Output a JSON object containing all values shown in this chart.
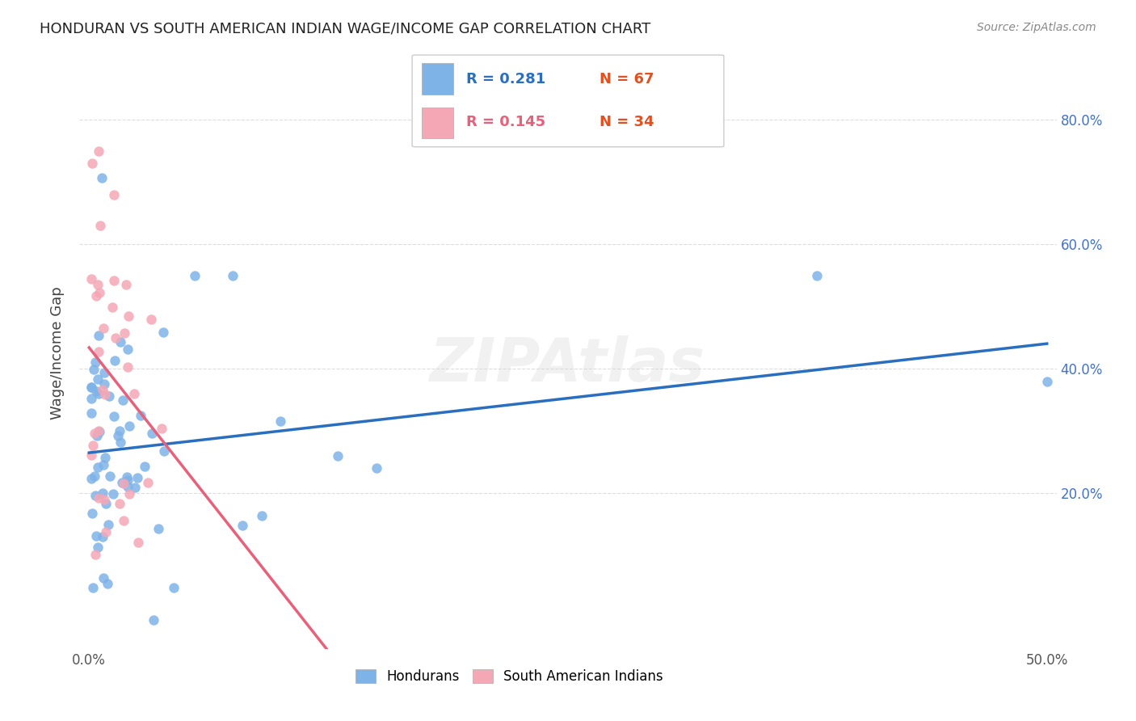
{
  "title": "HONDURAN VS SOUTH AMERICAN INDIAN WAGE/INCOME GAP CORRELATION CHART",
  "source": "Source: ZipAtlas.com",
  "ylabel": "Wage/Income Gap",
  "xlim": [
    -0.005,
    0.505
  ],
  "ylim": [
    -0.05,
    0.9
  ],
  "xtick_positions": [
    0.0,
    0.1,
    0.2,
    0.3,
    0.4,
    0.5
  ],
  "xtick_labels": [
    "0.0%",
    "",
    "",
    "",
    "",
    "50.0%"
  ],
  "ytick_vals": [
    0.2,
    0.4,
    0.6,
    0.8
  ],
  "ytick_labels": [
    "20.0%",
    "40.0%",
    "60.0%",
    "80.0%"
  ],
  "blue_R": 0.281,
  "blue_N": 67,
  "pink_R": 0.145,
  "pink_N": 34,
  "blue_color": "#7EB3E8",
  "pink_color": "#F4A7B5",
  "blue_line_color": "#2A6FBF",
  "pink_line_color": "#E8607A",
  "background_color": "#FFFFFF",
  "grid_color": "#DDDDDD",
  "marker_size": 80,
  "legend_R_blue_text": "R = 0.281",
  "legend_N_blue_text": "N = 67",
  "legend_R_pink_text": "R = 0.145",
  "legend_N_pink_text": "N = 34",
  "legend_label_blue": "Hondurans",
  "legend_label_pink": "South American Indians",
  "watermark": "ZIPAtlas"
}
